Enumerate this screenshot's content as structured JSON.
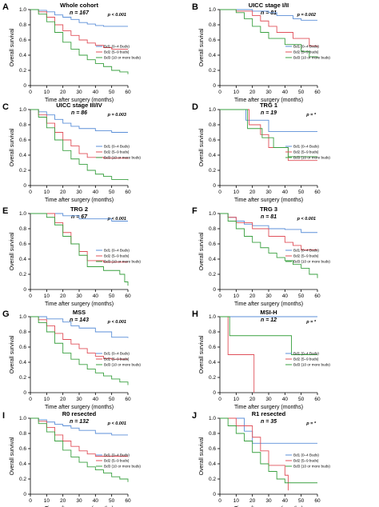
{
  "chart_data": [
    {
      "panel": "A",
      "type": "line",
      "title": "Whole cohort",
      "n_label": "n = 167",
      "p_label": "p < 0.001",
      "xlabel": "Time after surgery (months)",
      "ylabel": "Overall survival",
      "xlim": [
        0,
        60
      ],
      "ylim": [
        0,
        1
      ],
      "grid": false,
      "legend_placement": "right",
      "xticks": [
        "0",
        "10",
        "20",
        "30",
        "40",
        "50",
        "60"
      ],
      "yticks": [
        "0",
        "0.2",
        "0.4",
        "0.6",
        "0.8",
        "1.0"
      ],
      "series": [
        {
          "name": "Bd1 (0–4 Buds)",
          "color": "#5b8fd8",
          "x": [
            0,
            5,
            10,
            15,
            20,
            25,
            30,
            35,
            40,
            45,
            50,
            60
          ],
          "y": [
            1,
            0.99,
            0.97,
            0.93,
            0.9,
            0.87,
            0.83,
            0.81,
            0.79,
            0.78,
            0.78,
            0.78
          ]
        },
        {
          "name": "Bd2 (5–9 buds)",
          "color": "#e0505a",
          "x": [
            0,
            5,
            10,
            15,
            20,
            25,
            30,
            35,
            40,
            45,
            50,
            60
          ],
          "y": [
            1,
            0.97,
            0.9,
            0.8,
            0.72,
            0.66,
            0.6,
            0.56,
            0.53,
            0.5,
            0.48,
            0.48
          ]
        },
        {
          "name": "Bd3 (10 or more buds)",
          "color": "#3aa040",
          "x": [
            0,
            5,
            10,
            15,
            20,
            25,
            30,
            35,
            40,
            45,
            50,
            55,
            60
          ],
          "y": [
            1,
            0.94,
            0.84,
            0.7,
            0.57,
            0.48,
            0.4,
            0.34,
            0.29,
            0.25,
            0.2,
            0.18,
            0.15
          ]
        }
      ]
    },
    {
      "panel": "B",
      "type": "line",
      "title": "UICC stage I/II",
      "n_label": "n = 81",
      "p_label": "p = 0.002",
      "xlabel": "Time after surgery (months)",
      "ylabel": "Overall survival",
      "xlim": [
        0,
        60
      ],
      "ylim": [
        0,
        1
      ],
      "grid": false,
      "legend_placement": "right",
      "xticks": [
        "0",
        "10",
        "20",
        "30",
        "40",
        "50",
        "60"
      ],
      "yticks": [
        "0",
        "0.2",
        "0.4",
        "0.6",
        "0.8",
        "1.0"
      ],
      "series": [
        {
          "name": "Bd1 (0–4 Buds)",
          "color": "#5b8fd8",
          "x": [
            0,
            10,
            20,
            30,
            35,
            45,
            50,
            60
          ],
          "y": [
            1,
            1,
            0.98,
            0.96,
            0.92,
            0.88,
            0.86,
            0.86
          ]
        },
        {
          "name": "Bd2 (5–9 buds)",
          "color": "#e0505a",
          "x": [
            0,
            10,
            20,
            25,
            30,
            35,
            45,
            55,
            60
          ],
          "y": [
            1,
            0.98,
            0.92,
            0.85,
            0.78,
            0.7,
            0.62,
            0.52,
            0.5
          ]
        },
        {
          "name": "Bd3 (10 or more buds)",
          "color": "#3aa040",
          "x": [
            0,
            10,
            15,
            20,
            25,
            30,
            40,
            50,
            55,
            60
          ],
          "y": [
            1,
            0.96,
            0.88,
            0.78,
            0.7,
            0.62,
            0.54,
            0.45,
            0.38,
            0.36
          ]
        }
      ]
    },
    {
      "panel": "C",
      "type": "line",
      "title": "UICC stage III/IV",
      "n_label": "n = 86",
      "p_label": "p = 0.003",
      "xlabel": "Time after surgery (months)",
      "ylabel": "Overall survival",
      "xlim": [
        0,
        60
      ],
      "ylim": [
        0,
        1
      ],
      "grid": false,
      "legend_placement": "right",
      "xticks": [
        "0",
        "10",
        "20",
        "30",
        "40",
        "50",
        "60"
      ],
      "yticks": [
        "0",
        "0.2",
        "0.4",
        "0.6",
        "0.8",
        "1.0"
      ],
      "series": [
        {
          "name": "Bd1 (0–4 Buds)",
          "color": "#5b8fd8",
          "x": [
            0,
            5,
            10,
            15,
            20,
            25,
            30,
            40,
            50,
            60
          ],
          "y": [
            1,
            0.97,
            0.93,
            0.87,
            0.82,
            0.78,
            0.75,
            0.72,
            0.7,
            0.7
          ]
        },
        {
          "name": "Bd2 (5–9 buds)",
          "color": "#e0505a",
          "x": [
            0,
            5,
            10,
            15,
            20,
            25,
            30,
            35,
            45,
            55,
            60
          ],
          "y": [
            1,
            0.93,
            0.82,
            0.7,
            0.6,
            0.52,
            0.42,
            0.37,
            0.36,
            0.36,
            0.35
          ]
        },
        {
          "name": "Bd3 (10 or more buds)",
          "color": "#3aa040",
          "x": [
            0,
            5,
            10,
            15,
            20,
            25,
            30,
            35,
            40,
            45,
            50,
            60
          ],
          "y": [
            1,
            0.9,
            0.76,
            0.6,
            0.46,
            0.35,
            0.28,
            0.2,
            0.15,
            0.12,
            0.08,
            0.07
          ]
        }
      ]
    },
    {
      "panel": "D",
      "type": "line",
      "title": "TRG 1",
      "n_label": "n = 19",
      "p_label": "p = *",
      "xlabel": "Time after surgery (months)",
      "ylabel": "Overall survival",
      "xlim": [
        0,
        60
      ],
      "ylim": [
        0,
        1
      ],
      "grid": false,
      "legend_placement": "right",
      "xticks": [
        "0",
        "10",
        "20",
        "30",
        "40",
        "50",
        "60"
      ],
      "yticks": [
        "0",
        "0.2",
        "0.4",
        "0.6",
        "0.8",
        "1.0"
      ],
      "series": [
        {
          "name": "Bd1 (0–4 Buds)",
          "color": "#5b8fd8",
          "x": [
            0,
            10,
            16,
            30,
            40,
            60
          ],
          "y": [
            1,
            1,
            0.86,
            0.71,
            0.71,
            0.71
          ]
        },
        {
          "name": "Bd2 (5–9 buds)",
          "color": "#e0505a",
          "x": [
            0,
            15,
            18,
            25,
            30,
            42,
            60
          ],
          "y": [
            1,
            1,
            0.8,
            0.67,
            0.5,
            0.33,
            0.33
          ]
        },
        {
          "name": "Bd3 (10 or more buds)",
          "color": "#3aa040",
          "x": [
            0,
            15,
            17,
            26,
            33,
            42,
            60
          ],
          "y": [
            1,
            1,
            0.75,
            0.63,
            0.5,
            0.38,
            0.38
          ]
        }
      ]
    },
    {
      "panel": "E",
      "type": "line",
      "title": "TRG 2",
      "n_label": "n = 67",
      "p_label": "p < 0.001",
      "xlabel": "Time after surgery (months)",
      "ylabel": "Overall survival",
      "xlim": [
        0,
        60
      ],
      "ylim": [
        0,
        1
      ],
      "grid": false,
      "legend_placement": "right",
      "xticks": [
        "0",
        "10",
        "20",
        "30",
        "40",
        "50",
        "60"
      ],
      "yticks": [
        "0",
        "0.2",
        "0.4",
        "0.6",
        "0.8",
        "1.0"
      ],
      "series": [
        {
          "name": "Bd1 (0–4 Buds)",
          "color": "#5b8fd8",
          "x": [
            0,
            10,
            20,
            30,
            40,
            50,
            60
          ],
          "y": [
            1,
            1,
            0.97,
            0.93,
            0.93,
            0.9,
            0.9
          ]
        },
        {
          "name": "Bd2 (5–9 buds)",
          "color": "#e0505a",
          "x": [
            0,
            10,
            15,
            20,
            25,
            30,
            35,
            45,
            55,
            60
          ],
          "y": [
            1,
            1,
            0.88,
            0.75,
            0.6,
            0.5,
            0.38,
            0.36,
            0.36,
            0.36
          ]
        },
        {
          "name": "Bd3 (10 or more buds)",
          "color": "#3aa040",
          "x": [
            0,
            10,
            15,
            20,
            25,
            30,
            35,
            45,
            55,
            58,
            60
          ],
          "y": [
            1,
            0.95,
            0.85,
            0.7,
            0.6,
            0.45,
            0.3,
            0.25,
            0.2,
            0.1,
            0.05
          ]
        }
      ]
    },
    {
      "panel": "F",
      "type": "line",
      "title": "TRG 3",
      "n_label": "n = 81",
      "p_label": "p < 0.001",
      "xlabel": "Time after surgery (months)",
      "ylabel": "Overall survival",
      "xlim": [
        0,
        60
      ],
      "ylim": [
        0,
        1
      ],
      "grid": false,
      "legend_placement": "right",
      "xticks": [
        "0",
        "10",
        "20",
        "30",
        "40",
        "50",
        "60"
      ],
      "yticks": [
        "0",
        "0.2",
        "0.4",
        "0.6",
        "0.8",
        "1.0"
      ],
      "series": [
        {
          "name": "Bd1 (0–4 Buds)",
          "color": "#5b8fd8",
          "x": [
            0,
            5,
            10,
            15,
            20,
            30,
            40,
            50,
            60
          ],
          "y": [
            1,
            0.95,
            0.9,
            0.86,
            0.84,
            0.8,
            0.79,
            0.75,
            0.75
          ]
        },
        {
          "name": "Bd2 (5–9 buds)",
          "color": "#e0505a",
          "x": [
            0,
            5,
            10,
            20,
            30,
            40,
            45,
            50,
            60
          ],
          "y": [
            1,
            0.95,
            0.88,
            0.8,
            0.7,
            0.62,
            0.58,
            0.52,
            0.52
          ]
        },
        {
          "name": "Bd3 (10 or more buds)",
          "color": "#3aa040",
          "x": [
            0,
            5,
            10,
            15,
            20,
            25,
            30,
            35,
            40,
            45,
            50,
            55,
            60
          ],
          "y": [
            1,
            0.9,
            0.8,
            0.7,
            0.62,
            0.55,
            0.48,
            0.42,
            0.38,
            0.33,
            0.28,
            0.2,
            0.15
          ]
        }
      ]
    },
    {
      "panel": "G",
      "type": "line",
      "title": "MSS",
      "n_label": "n = 143",
      "p_label": "p < 0.001",
      "xlabel": "Time after surgery (months)",
      "ylabel": "Overall survival",
      "xlim": [
        0,
        60
      ],
      "ylim": [
        0,
        1
      ],
      "grid": false,
      "legend_placement": "right",
      "xticks": [
        "0",
        "10",
        "20",
        "30",
        "40",
        "50",
        "60"
      ],
      "yticks": [
        "0",
        "0.2",
        "0.4",
        "0.6",
        "0.8",
        "1.0"
      ],
      "series": [
        {
          "name": "Bd1 (0–4 Buds)",
          "color": "#5b8fd8",
          "x": [
            0,
            10,
            20,
            25,
            30,
            40,
            50,
            60
          ],
          "y": [
            1,
            0.97,
            0.93,
            0.88,
            0.85,
            0.8,
            0.73,
            0.72
          ]
        },
        {
          "name": "Bd2 (5–9 buds)",
          "color": "#e0505a",
          "x": [
            0,
            5,
            10,
            15,
            20,
            25,
            30,
            35,
            40,
            45,
            50,
            60
          ],
          "y": [
            1,
            0.96,
            0.88,
            0.78,
            0.7,
            0.64,
            0.58,
            0.52,
            0.48,
            0.45,
            0.44,
            0.44
          ]
        },
        {
          "name": "Bd3 (10 or more buds)",
          "color": "#3aa040",
          "x": [
            0,
            5,
            10,
            15,
            20,
            25,
            30,
            35,
            40,
            45,
            50,
            55,
            60
          ],
          "y": [
            1,
            0.92,
            0.8,
            0.65,
            0.52,
            0.44,
            0.37,
            0.31,
            0.26,
            0.22,
            0.18,
            0.14,
            0.1
          ]
        }
      ]
    },
    {
      "panel": "H",
      "type": "line",
      "title": "MSI-H",
      "n_label": "n = 12",
      "p_label": "p = *",
      "xlabel": "Time after surgery (months)",
      "ylabel": "Overall survival",
      "xlim": [
        0,
        60
      ],
      "ylim": [
        0,
        1
      ],
      "grid": false,
      "legend_placement": "right",
      "xticks": [
        "0",
        "10",
        "20",
        "30",
        "40",
        "50",
        "60"
      ],
      "yticks": [
        "0",
        "0.2",
        "0.4",
        "0.6",
        "0.8",
        "1.0"
      ],
      "series": [
        {
          "name": "Bd1 (0–4 Buds)",
          "color": "#5b8fd8",
          "x": [
            0,
            60
          ],
          "y": [
            1,
            1
          ]
        },
        {
          "name": "Bd2 (5–9 buds)",
          "color": "#e0505a",
          "x": [
            0,
            5,
            20,
            21
          ],
          "y": [
            1,
            0.5,
            0.5,
            0
          ]
        },
        {
          "name": "Bd3 (10 or more buds)",
          "color": "#3aa040",
          "x": [
            0,
            6,
            44,
            60
          ],
          "y": [
            1,
            0.75,
            0.5,
            0.5
          ]
        }
      ]
    },
    {
      "panel": "I",
      "type": "line",
      "title": "R0 resected",
      "n_label": "n = 132",
      "p_label": "p < 0.001",
      "xlabel": "Time after surgery (months)",
      "ylabel": "Overall survival",
      "xlim": [
        0,
        60
      ],
      "ylim": [
        0,
        1
      ],
      "grid": false,
      "legend_placement": "right",
      "xticks": [
        "0",
        "10",
        "20",
        "30",
        "40",
        "50",
        "60"
      ],
      "yticks": [
        "0",
        "0.2",
        "0.4",
        "0.6",
        "0.8",
        "1.0"
      ],
      "series": [
        {
          "name": "Bd1 (0–4 Buds)",
          "color": "#5b8fd8",
          "x": [
            0,
            5,
            10,
            15,
            20,
            25,
            30,
            40,
            50,
            60
          ],
          "y": [
            1,
            0.98,
            0.95,
            0.92,
            0.9,
            0.87,
            0.84,
            0.8,
            0.78,
            0.78
          ]
        },
        {
          "name": "Bd2 (5–9 buds)",
          "color": "#e0505a",
          "x": [
            0,
            5,
            10,
            15,
            20,
            25,
            30,
            35,
            40,
            50,
            60
          ],
          "y": [
            1,
            0.96,
            0.88,
            0.78,
            0.7,
            0.63,
            0.57,
            0.53,
            0.5,
            0.5,
            0.5
          ]
        },
        {
          "name": "Bd3 (10 or more buds)",
          "color": "#3aa040",
          "x": [
            0,
            5,
            10,
            15,
            20,
            25,
            30,
            35,
            40,
            45,
            50,
            55,
            60
          ],
          "y": [
            1,
            0.93,
            0.82,
            0.7,
            0.58,
            0.49,
            0.42,
            0.36,
            0.32,
            0.28,
            0.23,
            0.2,
            0.16
          ]
        }
      ]
    },
    {
      "panel": "J",
      "type": "line",
      "title": "R1 resected",
      "n_label": "n = 35",
      "p_label": "p = *",
      "xlabel": "Time after surgery (months)",
      "ylabel": "Overall survival",
      "xlim": [
        0,
        60
      ],
      "ylim": [
        0,
        1
      ],
      "grid": false,
      "legend_placement": "right",
      "xticks": [
        "0",
        "10",
        "20",
        "30",
        "40",
        "50",
        "60"
      ],
      "yticks": [
        "0",
        "0.2",
        "0.4",
        "0.6",
        "0.8",
        "1.0"
      ],
      "series": [
        {
          "name": "Bd1 (0–4 Buds)",
          "color": "#5b8fd8",
          "x": [
            0,
            10,
            15,
            20,
            60
          ],
          "y": [
            1,
            1,
            0.83,
            0.67,
            0.67
          ]
        },
        {
          "name": "Bd2 (5–9 buds)",
          "color": "#e0505a",
          "x": [
            0,
            10,
            20,
            25,
            30,
            40,
            42
          ],
          "y": [
            1,
            0.9,
            0.75,
            0.57,
            0.38,
            0.25,
            0.05
          ]
        },
        {
          "name": "Bd3 (10 or more buds)",
          "color": "#3aa040",
          "x": [
            0,
            5,
            10,
            15,
            20,
            25,
            30,
            35,
            40,
            60
          ],
          "y": [
            1,
            0.9,
            0.8,
            0.7,
            0.55,
            0.4,
            0.3,
            0.2,
            0.15,
            0.15
          ]
        }
      ]
    }
  ]
}
